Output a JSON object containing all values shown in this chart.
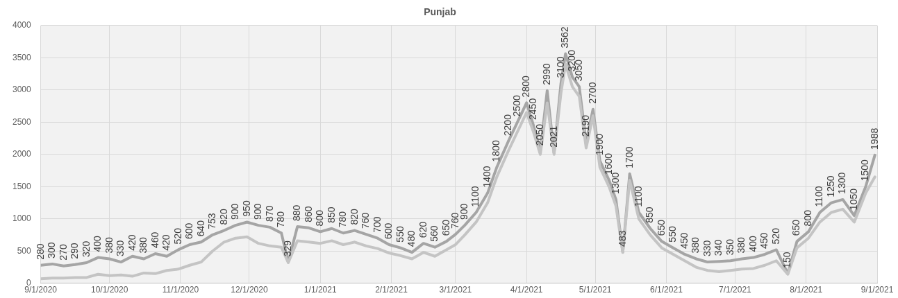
{
  "chart_data": {
    "type": "line",
    "title": "Punjab",
    "x": [
      "2020-09-01",
      "2020-09-06",
      "2020-09-11",
      "2020-09-16",
      "2020-09-21",
      "2020-09-26",
      "2020-10-01",
      "2020-10-06",
      "2020-10-11",
      "2020-10-16",
      "2020-10-21",
      "2020-10-26",
      "2020-10-31",
      "2020-11-05",
      "2020-11-10",
      "2020-11-15",
      "2020-11-20",
      "2020-11-25",
      "2020-11-30",
      "2020-12-05",
      "2020-12-10",
      "2020-12-15",
      "2020-12-18",
      "2020-12-22",
      "2020-12-27",
      "2021-01-01",
      "2021-01-06",
      "2021-01-11",
      "2021-01-16",
      "2021-01-21",
      "2021-01-26",
      "2021-01-31",
      "2021-02-05",
      "2021-02-10",
      "2021-02-15",
      "2021-02-20",
      "2021-02-25",
      "2021-03-01",
      "2021-03-05",
      "2021-03-10",
      "2021-03-15",
      "2021-03-19",
      "2021-03-24",
      "2021-03-28",
      "2021-04-01",
      "2021-04-04",
      "2021-04-07",
      "2021-04-10",
      "2021-04-13",
      "2021-04-16",
      "2021-04-18",
      "2021-04-21",
      "2021-04-24",
      "2021-04-27",
      "2021-04-30",
      "2021-05-03",
      "2021-05-07",
      "2021-05-10",
      "2021-05-13",
      "2021-05-16",
      "2021-05-20",
      "2021-05-25",
      "2021-05-30",
      "2021-06-04",
      "2021-06-09",
      "2021-06-14",
      "2021-06-19",
      "2021-06-24",
      "2021-06-29",
      "2021-07-04",
      "2021-07-09",
      "2021-07-14",
      "2021-07-19",
      "2021-07-24",
      "2021-07-28",
      "2021-08-02",
      "2021-08-07",
      "2021-08-12",
      "2021-08-17",
      "2021-08-22",
      "2021-08-27",
      "2021-08-31"
    ],
    "series": [
      {
        "color": "#a5a5a5",
        "data_labels": true,
        "values": [
          280,
          300,
          270,
          290,
          320,
          400,
          380,
          330,
          420,
          380,
          460,
          420,
          520,
          600,
          640,
          753,
          820,
          900,
          950,
          900,
          870,
          780,
          329,
          880,
          860,
          800,
          850,
          780,
          820,
          760,
          700,
          600,
          550,
          480,
          620,
          560,
          650,
          760,
          900,
          1100,
          1400,
          1800,
          2200,
          2500,
          2800,
          2450,
          2050,
          2990,
          2021,
          3100,
          3562,
          3200,
          3050,
          2190,
          2700,
          1900,
          1600,
          1300,
          483,
          1700,
          1100,
          850,
          650,
          550,
          450,
          380,
          330,
          340,
          350,
          380,
          400,
          450,
          520,
          150,
          650,
          800,
          1100,
          1250,
          1300,
          1050,
          1500,
          1988
        ]
      },
      {
        "color": "#c4c4c4",
        "values": [
          70,
          80,
          80,
          90,
          90,
          140,
          120,
          130,
          110,
          160,
          150,
          200,
          220,
          280,
          330,
          500,
          640,
          700,
          720,
          620,
          580,
          560,
          320,
          660,
          640,
          620,
          660,
          600,
          640,
          580,
          540,
          470,
          430,
          380,
          480,
          420,
          520,
          600,
          750,
          950,
          1250,
          1650,
          2050,
          2350,
          2650,
          2350,
          2000,
          2800,
          2000,
          2950,
          3400,
          3050,
          2900,
          2100,
          2600,
          1800,
          1500,
          1200,
          480,
          1600,
          1000,
          750,
          550,
          450,
          350,
          250,
          200,
          180,
          200,
          220,
          230,
          280,
          350,
          140,
          550,
          700,
          950,
          1100,
          1150,
          950,
          1400,
          1650
        ]
      }
    ],
    "xlim": [
      "2020-09-01",
      "2021-09-01"
    ],
    "xticks": [
      {
        "value": "2020-09-01",
        "label": "9/1/2020"
      },
      {
        "value": "2020-10-01",
        "label": "10/1/2020"
      },
      {
        "value": "2020-11-01",
        "label": "11/1/2020"
      },
      {
        "value": "2020-12-01",
        "label": "12/1/2020"
      },
      {
        "value": "2021-01-01",
        "label": "1/1/2021"
      },
      {
        "value": "2021-02-01",
        "label": "2/1/2021"
      },
      {
        "value": "2021-03-01",
        "label": "3/1/2021"
      },
      {
        "value": "2021-04-01",
        "label": "4/1/2021"
      },
      {
        "value": "2021-05-01",
        "label": "5/1/2021"
      },
      {
        "value": "2021-06-01",
        "label": "6/1/2021"
      },
      {
        "value": "2021-07-01",
        "label": "7/1/2021"
      },
      {
        "value": "2021-08-01",
        "label": "8/1/2021"
      },
      {
        "value": "2021-09-01",
        "label": "9/1/2021"
      }
    ],
    "ylim": [
      0,
      4000
    ],
    "yticks": [
      0,
      500,
      1000,
      1500,
      2000,
      2500,
      3000,
      3500,
      4000
    ],
    "grid": true,
    "marker": "none",
    "line_style": "solid",
    "legend": false
  }
}
